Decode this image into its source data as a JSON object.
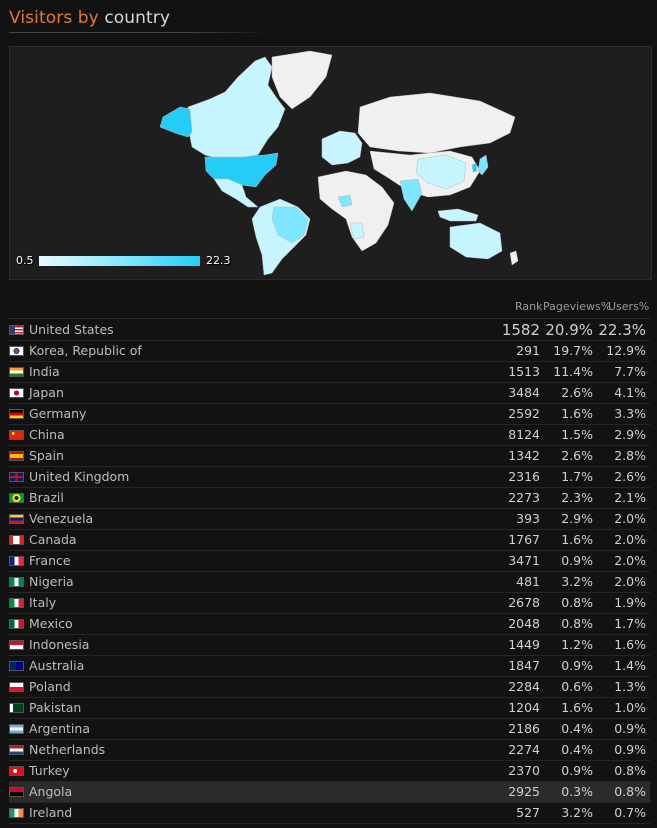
{
  "title": {
    "part1": "Visitors by",
    "part2": "country"
  },
  "legend": {
    "min": "0.5",
    "max": "22.3"
  },
  "table": {
    "headers": {
      "rank": "Rank",
      "pageviews": "Pageviews%",
      "users": "Users%"
    },
    "rows": [
      {
        "country": "United States",
        "rank": "1582",
        "pageviews": "20.9%",
        "users": "22.3%"
      },
      {
        "country": "Korea, Republic of",
        "rank": "291",
        "pageviews": "19.7%",
        "users": "12.9%"
      },
      {
        "country": "India",
        "rank": "1513",
        "pageviews": "11.4%",
        "users": "7.7%"
      },
      {
        "country": "Japan",
        "rank": "3484",
        "pageviews": "2.6%",
        "users": "4.1%"
      },
      {
        "country": "Germany",
        "rank": "2592",
        "pageviews": "1.6%",
        "users": "3.3%"
      },
      {
        "country": "China",
        "rank": "8124",
        "pageviews": "1.5%",
        "users": "2.9%"
      },
      {
        "country": "Spain",
        "rank": "1342",
        "pageviews": "2.6%",
        "users": "2.8%"
      },
      {
        "country": "United Kingdom",
        "rank": "2316",
        "pageviews": "1.7%",
        "users": "2.6%"
      },
      {
        "country": "Brazil",
        "rank": "2273",
        "pageviews": "2.3%",
        "users": "2.1%"
      },
      {
        "country": "Venezuela",
        "rank": "393",
        "pageviews": "2.9%",
        "users": "2.0%"
      },
      {
        "country": "Canada",
        "rank": "1767",
        "pageviews": "1.6%",
        "users": "2.0%"
      },
      {
        "country": "France",
        "rank": "3471",
        "pageviews": "0.9%",
        "users": "2.0%"
      },
      {
        "country": "Nigeria",
        "rank": "481",
        "pageviews": "3.2%",
        "users": "2.0%"
      },
      {
        "country": "Italy",
        "rank": "2678",
        "pageviews": "0.8%",
        "users": "1.9%"
      },
      {
        "country": "Mexico",
        "rank": "2048",
        "pageviews": "0.8%",
        "users": "1.7%"
      },
      {
        "country": "Indonesia",
        "rank": "1449",
        "pageviews": "1.2%",
        "users": "1.6%"
      },
      {
        "country": "Australia",
        "rank": "1847",
        "pageviews": "0.9%",
        "users": "1.4%"
      },
      {
        "country": "Poland",
        "rank": "2284",
        "pageviews": "0.6%",
        "users": "1.3%"
      },
      {
        "country": "Pakistan",
        "rank": "1204",
        "pageviews": "1.6%",
        "users": "1.0%"
      },
      {
        "country": "Argentina",
        "rank": "2186",
        "pageviews": "0.4%",
        "users": "0.9%"
      },
      {
        "country": "Netherlands",
        "rank": "2274",
        "pageviews": "0.4%",
        "users": "0.9%"
      },
      {
        "country": "Turkey",
        "rank": "2370",
        "pageviews": "0.9%",
        "users": "0.8%"
      },
      {
        "country": "Angola",
        "rank": "2925",
        "pageviews": "0.3%",
        "users": "0.8%"
      },
      {
        "country": "Ireland",
        "rank": "527",
        "pageviews": "3.2%",
        "users": "0.7%"
      }
    ]
  },
  "colors": {
    "title_accent": "#e07a33",
    "map_high": "#25cdf6",
    "map_mid": "#7ee6ff",
    "map_low": "#c6f4ff",
    "map_none": "#f0f0f0"
  }
}
